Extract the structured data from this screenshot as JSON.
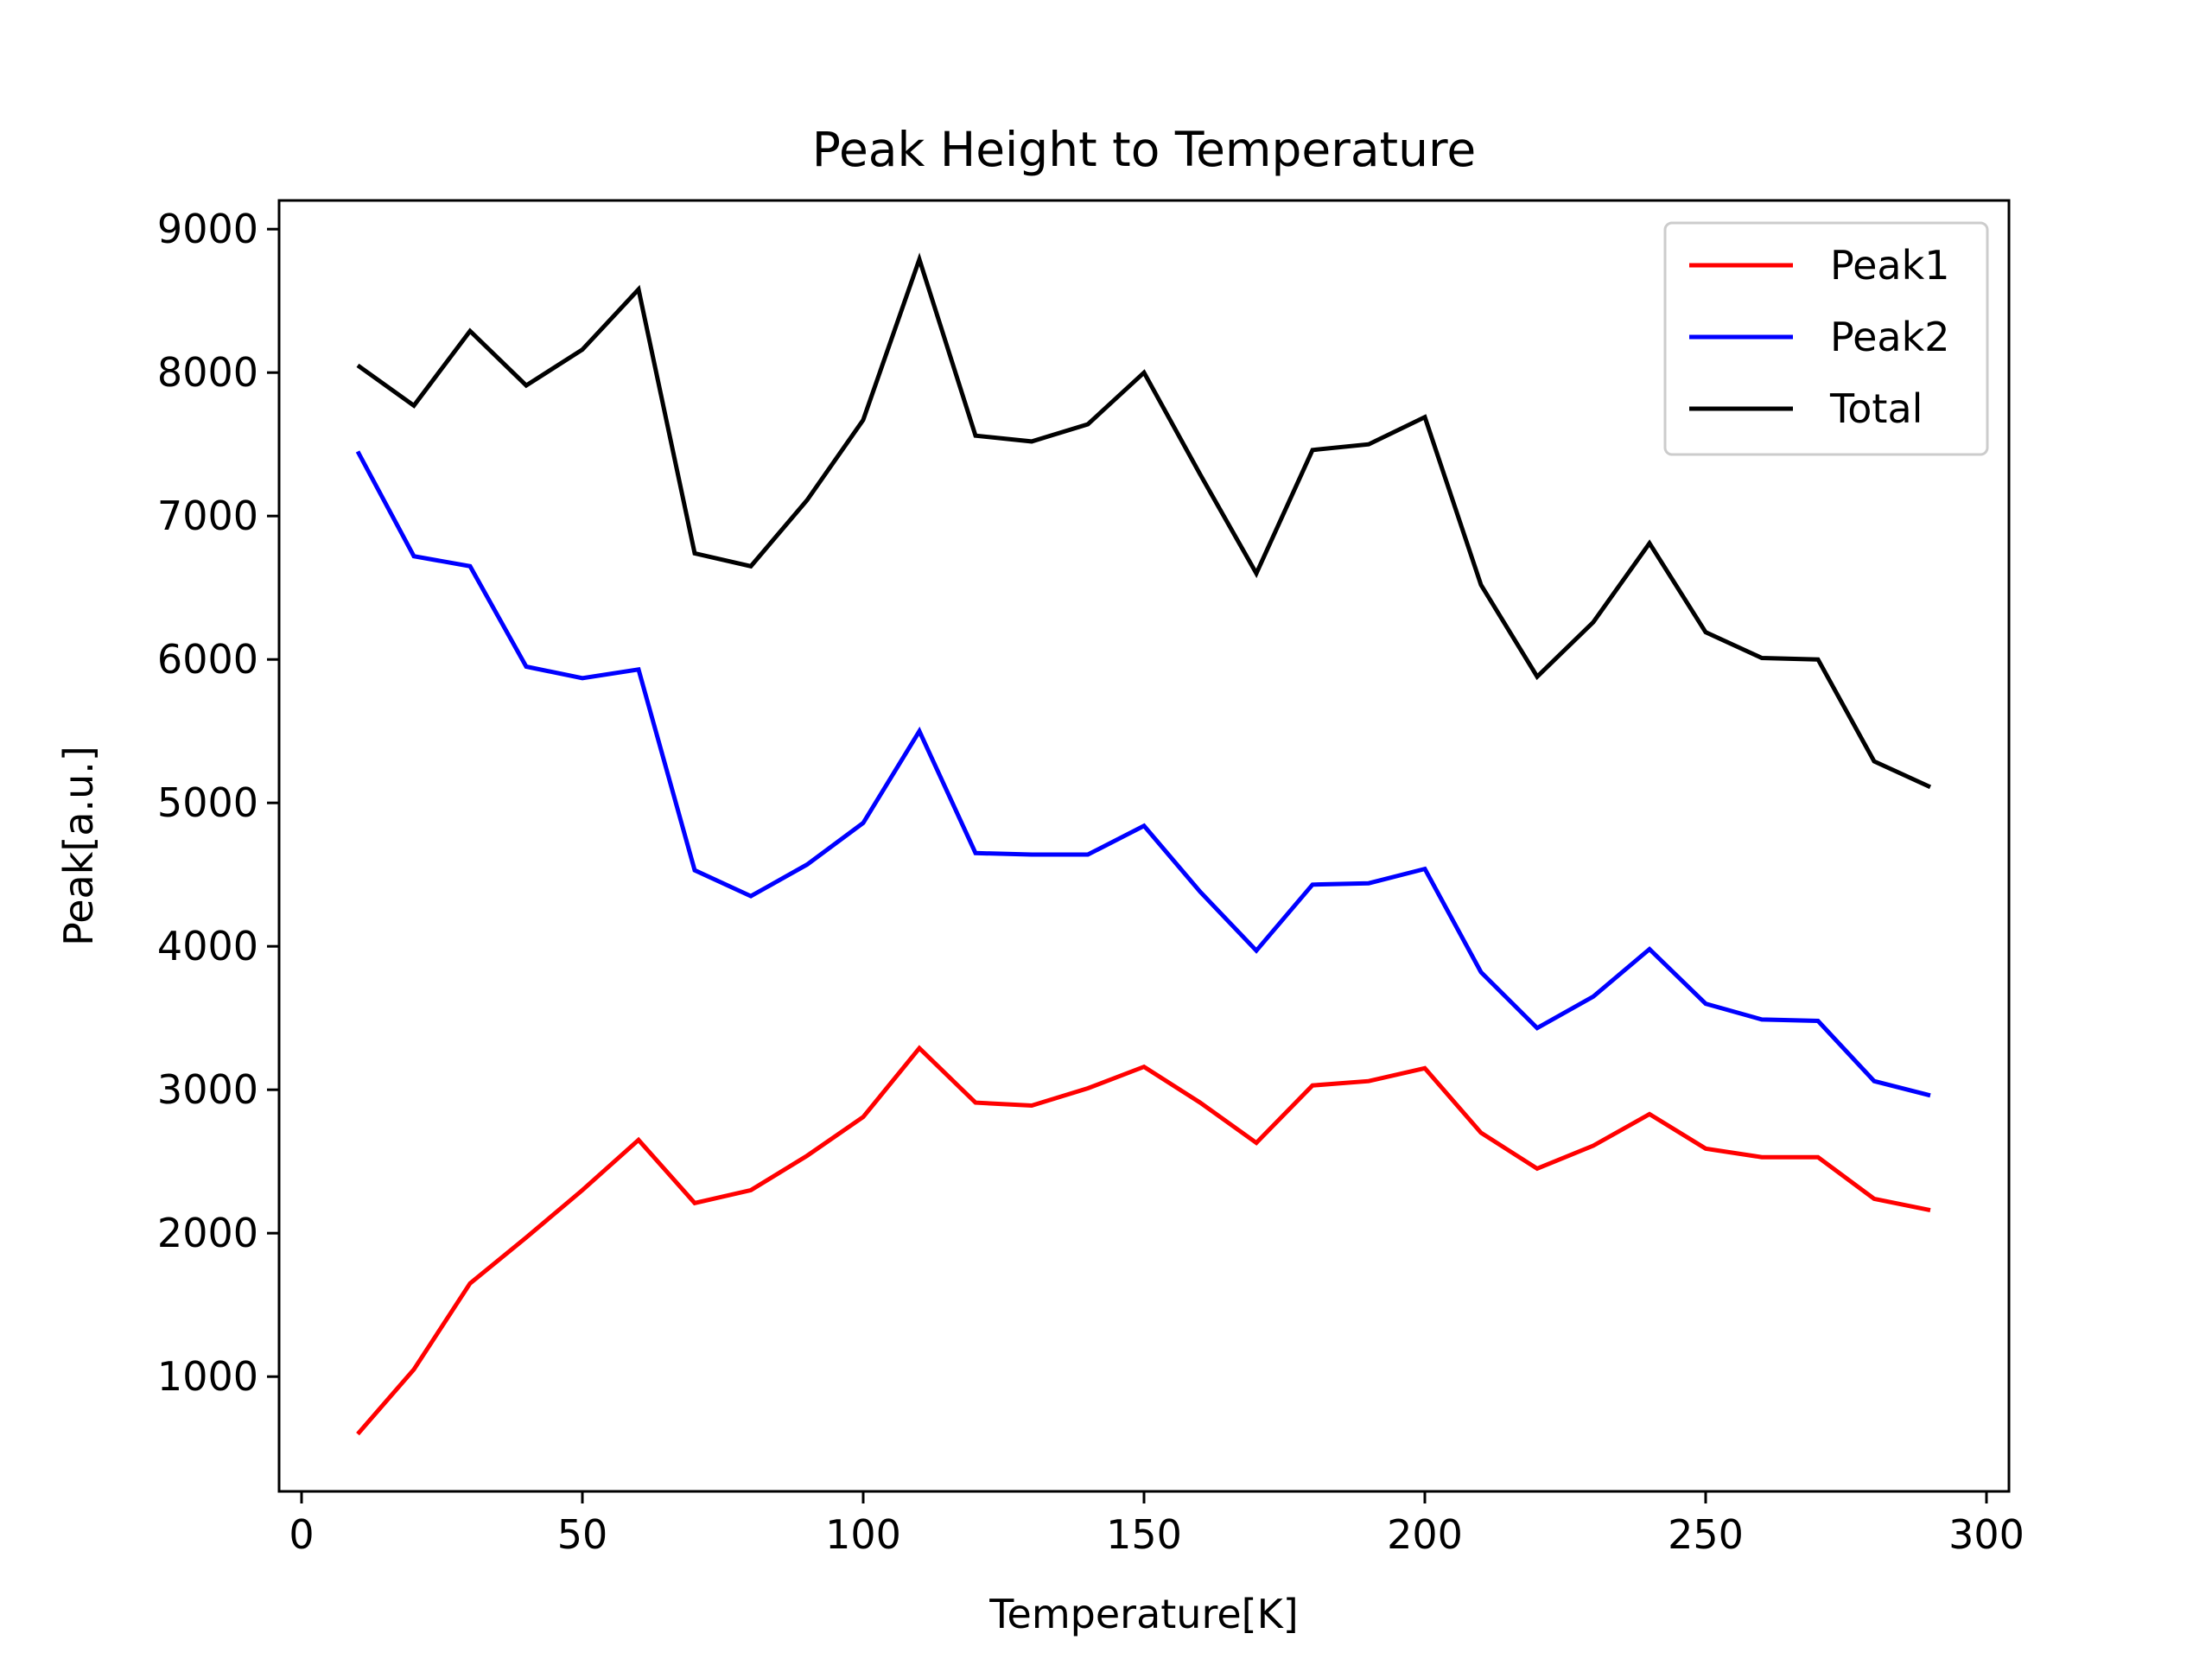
{
  "chart_data": {
    "type": "line",
    "title": "Peak Height to Temperature",
    "xlabel": "Temperature[K]",
    "ylabel": "Peak[a.u.]",
    "xlim": [
      -4,
      304
    ],
    "ylim": [
      200,
      9200
    ],
    "xticks": [
      0,
      50,
      100,
      150,
      200,
      250,
      300
    ],
    "yticks": [
      1000,
      2000,
      3000,
      4000,
      5000,
      6000,
      7000,
      8000,
      9000
    ],
    "grid": false,
    "legend_position": "top-right",
    "x": [
      10,
      20,
      30,
      40,
      50,
      60,
      70,
      80,
      90,
      100,
      110,
      120,
      130,
      140,
      150,
      160,
      170,
      180,
      190,
      200,
      210,
      220,
      230,
      240,
      250,
      260,
      270,
      280,
      290
    ],
    "series": [
      {
        "name": "Peak1",
        "color": "#ff0000",
        "values": [
          600,
          1050,
          1650,
          1970,
          2300,
          2650,
          2210,
          2300,
          2540,
          2810,
          3290,
          2910,
          2890,
          3010,
          3160,
          2910,
          2630,
          3030,
          3060,
          3150,
          2700,
          2450,
          2610,
          2830,
          2590,
          2530,
          2530,
          2240,
          2160
        ]
      },
      {
        "name": "Peak2",
        "color": "#0000ff",
        "values": [
          7450,
          6720,
          6650,
          5950,
          5870,
          5930,
          4530,
          4350,
          4570,
          4860,
          5500,
          4650,
          4640,
          4640,
          4840,
          4380,
          3970,
          4430,
          4440,
          4540,
          3820,
          3430,
          3650,
          3980,
          3600,
          3490,
          3480,
          3060,
          2960
        ]
      },
      {
        "name": "Total",
        "color": "#000000",
        "values": [
          8050,
          7770,
          8290,
          7910,
          8160,
          8580,
          6740,
          6650,
          7110,
          7670,
          8790,
          7560,
          7520,
          7640,
          8000,
          7290,
          6600,
          7460,
          7500,
          7690,
          6520,
          5880,
          6260,
          6810,
          6190,
          6010,
          6000,
          5290,
          5110
        ]
      }
    ]
  }
}
